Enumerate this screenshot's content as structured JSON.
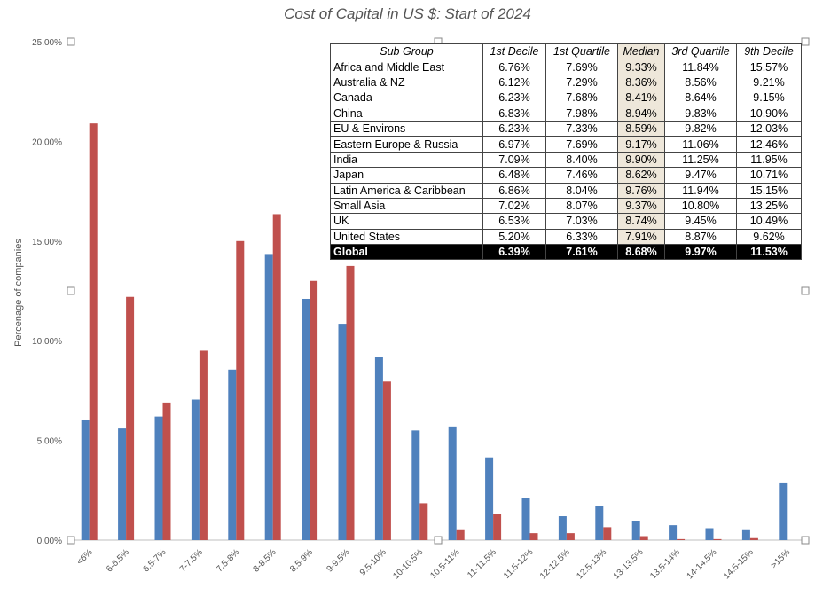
{
  "chart_data": {
    "type": "bar",
    "title": "Cost of Capital in US $: Start of 2024",
    "ylabel": "Percenage of companies",
    "ylim": [
      0,
      25
    ],
    "yticks": [
      "0.00%",
      "5.00%",
      "10.00%",
      "15.00%",
      "20.00%",
      "25.00%"
    ],
    "categories": [
      "<6%",
      "6-6.5%",
      "6.5-7%",
      "7-7.5%",
      "7.5-8%",
      "8-8.5%",
      "8.5-9%",
      "9-9.5%",
      "9.5-10%",
      "10-10.5%",
      "10.5-11%",
      "11-11.5%",
      "11.5-12%",
      "12-12.5%",
      "12.5-13%",
      "13-13.5%",
      "13.5-14%",
      "14-14.5%",
      "14.5-15%",
      ">15%"
    ],
    "series": [
      {
        "color": "#4f81bd",
        "values": [
          6.05,
          5.6,
          6.2,
          7.05,
          8.55,
          14.35,
          12.1,
          10.85,
          9.2,
          5.5,
          5.7,
          4.15,
          2.1,
          1.2,
          1.7,
          0.95,
          0.75,
          0.6,
          0.5,
          2.85
        ]
      },
      {
        "color": "#c0504d",
        "values": [
          20.9,
          12.2,
          6.9,
          9.5,
          15.0,
          16.35,
          13.0,
          13.75,
          7.95,
          1.85,
          0.5,
          1.3,
          0.35,
          0.35,
          0.65,
          0.2,
          0.05,
          0.05,
          0.1,
          0.0
        ]
      }
    ],
    "grid": false
  },
  "table": {
    "headers": [
      "Sub Group",
      "1st Decile",
      "1st Quartile",
      "Median",
      "3rd Quartile",
      "9th Decile"
    ],
    "rows": [
      [
        "Africa and Middle East",
        "6.76%",
        "7.69%",
        "9.33%",
        "11.84%",
        "15.57%"
      ],
      [
        "Australia & NZ",
        "6.12%",
        "7.29%",
        "8.36%",
        "8.56%",
        "9.21%"
      ],
      [
        "Canada",
        "6.23%",
        "7.68%",
        "8.41%",
        "8.64%",
        "9.15%"
      ],
      [
        "China",
        "6.83%",
        "7.98%",
        "8.94%",
        "9.83%",
        "10.90%"
      ],
      [
        "EU & Environs",
        "6.23%",
        "7.33%",
        "8.59%",
        "9.82%",
        "12.03%"
      ],
      [
        "Eastern Europe & Russia",
        "6.97%",
        "7.69%",
        "9.17%",
        "11.06%",
        "12.46%"
      ],
      [
        "India",
        "7.09%",
        "8.40%",
        "9.90%",
        "11.25%",
        "11.95%"
      ],
      [
        "Japan",
        "6.48%",
        "7.46%",
        "8.62%",
        "9.47%",
        "10.71%"
      ],
      [
        "Latin America & Caribbean",
        "6.86%",
        "8.04%",
        "9.76%",
        "11.94%",
        "15.15%"
      ],
      [
        "Small Asia",
        "7.02%",
        "8.07%",
        "9.37%",
        "10.80%",
        "13.25%"
      ],
      [
        "UK",
        "6.53%",
        "7.03%",
        "8.74%",
        "9.45%",
        "10.49%"
      ],
      [
        "United States",
        "5.20%",
        "6.33%",
        "7.91%",
        "8.87%",
        "9.62%"
      ]
    ],
    "global_row": [
      "Global",
      "6.39%",
      "7.61%",
      "8.68%",
      "9.97%",
      "11.53%"
    ]
  }
}
